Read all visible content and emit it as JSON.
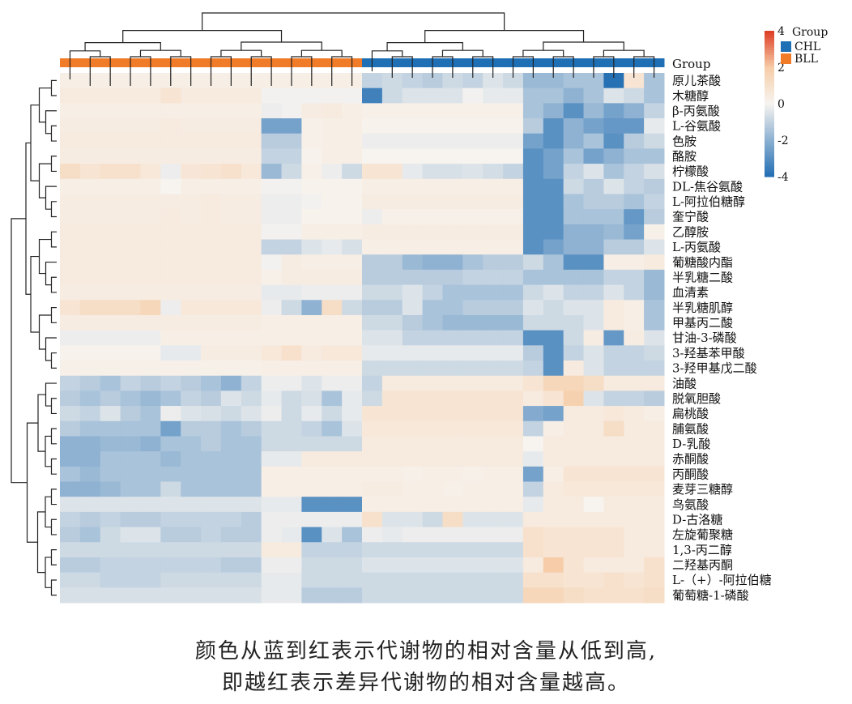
{
  "chart_data": {
    "type": "heatmap",
    "group_label": "Group",
    "legend": {
      "title": "Group",
      "groups": [
        {
          "name": "CHL",
          "color": "#1f6fb4"
        },
        {
          "name": "BLL",
          "color": "#f07b28"
        }
      ]
    },
    "colorbar": {
      "min": -4,
      "max": 4,
      "ticks": [
        4,
        2,
        0,
        -2,
        -4
      ]
    },
    "column_groups": [
      "BLL",
      "BLL",
      "BLL",
      "BLL",
      "BLL",
      "BLL",
      "BLL",
      "BLL",
      "BLL",
      "BLL",
      "BLL",
      "BLL",
      "BLL",
      "BLL",
      "BLL",
      "CHL",
      "CHL",
      "CHL",
      "CHL",
      "CHL",
      "CHL",
      "CHL",
      "CHL",
      "CHL",
      "CHL",
      "CHL",
      "CHL",
      "CHL",
      "CHL",
      "CHL"
    ],
    "rows": [
      {
        "label": "原儿茶酸",
        "values": [
          0.3,
          0.3,
          0.3,
          0.3,
          0.3,
          0.3,
          0.3,
          0.3,
          0.3,
          0.3,
          0.3,
          0.3,
          0.3,
          0.3,
          0.3,
          -1.0,
          -0.8,
          -1.0,
          -1.2,
          -0.8,
          -1.0,
          -0.5,
          -0.8,
          -1.8,
          -1.8,
          -1.5,
          -1.5,
          -4.0,
          0.8,
          -1.5
        ]
      },
      {
        "label": "木糖醇",
        "values": [
          0.5,
          0.5,
          0.5,
          0.5,
          0.5,
          0.8,
          0.5,
          0.5,
          0.5,
          0.5,
          -0.1,
          -0.1,
          -0.1,
          -0.1,
          -0.1,
          -3.5,
          -0.8,
          -0.5,
          -0.5,
          -0.5,
          -0.1,
          -0.3,
          -0.3,
          -1.5,
          -1.5,
          -2.0,
          -1.5,
          -0.5,
          -0.8,
          -1.5
        ]
      },
      {
        "label": "β-丙氨酸",
        "values": [
          0.3,
          0.3,
          0.3,
          0.3,
          0.3,
          0.3,
          0.3,
          0.3,
          0.3,
          0.3,
          -0.2,
          -0.1,
          0.4,
          0.5,
          0.3,
          0.2,
          0.2,
          0.2,
          0.2,
          0.2,
          0.2,
          0.2,
          0.2,
          -1.5,
          -2.0,
          -3.0,
          -1.8,
          -2.5,
          -2.0,
          -1.0
        ]
      },
      {
        "label": "L-谷氨酸",
        "values": [
          0.4,
          0.4,
          0.4,
          0.4,
          0.4,
          0.5,
          0.4,
          0.4,
          0.4,
          0.4,
          -2.5,
          -2.5,
          0.2,
          0.3,
          0.3,
          0.1,
          0.1,
          0.1,
          0.1,
          0.1,
          0.1,
          0.1,
          0.1,
          -1.2,
          -3.0,
          -2.0,
          -2.5,
          -2.8,
          -2.8,
          -0.3
        ]
      },
      {
        "label": "色胺",
        "values": [
          0.5,
          0.5,
          0.5,
          0.5,
          0.5,
          0.5,
          0.5,
          0.5,
          0.5,
          0.5,
          -1.2,
          -1.2,
          0.2,
          0.3,
          0.3,
          -0.2,
          -0.2,
          -0.2,
          -0.2,
          -0.2,
          -0.2,
          -0.2,
          -0.2,
          -2.5,
          -3.0,
          -2.0,
          -1.5,
          -3.0,
          -1.2,
          -0.8
        ]
      },
      {
        "label": "酪胺",
        "values": [
          0.4,
          0.4,
          0.4,
          0.4,
          0.4,
          0.4,
          0.4,
          0.4,
          0.4,
          0.4,
          -1.0,
          -1.0,
          0.1,
          0.3,
          0.3,
          0.0,
          0.0,
          0.0,
          0.0,
          0.0,
          0.0,
          0.0,
          0.0,
          -3.0,
          -2.5,
          -1.5,
          -2.5,
          -2.0,
          -1.5,
          -1.5
        ]
      },
      {
        "label": "柠檬酸",
        "values": [
          1.2,
          0.8,
          1.0,
          1.0,
          0.6,
          -0.2,
          0.7,
          0.8,
          1.0,
          0.6,
          -1.8,
          -0.8,
          0.2,
          -0.2,
          -0.8,
          0.8,
          0.8,
          -0.3,
          -0.6,
          -0.6,
          -0.5,
          -0.7,
          -1.0,
          -3.0,
          -2.5,
          -1.0,
          -0.5,
          -1.5,
          -1.0,
          -0.6
        ]
      },
      {
        "label": "DL-焦谷氨酸",
        "values": [
          0.3,
          0.3,
          0.3,
          0.3,
          0.3,
          0.0,
          0.3,
          0.3,
          0.3,
          0.3,
          -0.1,
          -0.1,
          0.1,
          0.1,
          0.1,
          0.3,
          0.3,
          0.3,
          0.3,
          0.3,
          0.3,
          0.3,
          0.3,
          -3.0,
          -3.0,
          -0.8,
          -1.2,
          -0.5,
          -1.0,
          -1.2
        ]
      },
      {
        "label": "L-阿拉伯糖醇",
        "values": [
          0.4,
          0.4,
          0.4,
          0.4,
          0.4,
          0.4,
          0.4,
          0.5,
          0.4,
          0.4,
          -0.2,
          -0.2,
          -0.1,
          0.1,
          0.1,
          0.4,
          0.4,
          0.4,
          0.4,
          0.4,
          0.4,
          0.4,
          0.4,
          -3.0,
          -3.0,
          -1.5,
          -1.2,
          -1.2,
          -1.5,
          -1.0
        ]
      },
      {
        "label": "奎宁酸",
        "values": [
          0.4,
          0.4,
          0.4,
          0.4,
          0.4,
          0.5,
          0.4,
          0.5,
          0.4,
          0.4,
          -0.2,
          -0.2,
          0.1,
          0.1,
          0.1,
          -0.2,
          0.2,
          0.2,
          0.2,
          0.2,
          0.2,
          0.2,
          0.2,
          -3.0,
          -3.0,
          -1.5,
          -1.5,
          -1.5,
          -2.8,
          -1.2
        ]
      },
      {
        "label": "乙醇胺",
        "values": [
          0.5,
          0.5,
          0.5,
          0.5,
          0.5,
          0.5,
          0.5,
          0.5,
          0.5,
          0.5,
          -0.1,
          -0.1,
          0.3,
          0.3,
          0.3,
          0.4,
          0.4,
          0.4,
          0.4,
          0.4,
          0.4,
          0.4,
          0.4,
          -3.0,
          -3.0,
          -2.0,
          -2.0,
          -1.8,
          -2.5,
          0.2
        ]
      },
      {
        "label": "L-丙氨酸",
        "values": [
          0.5,
          0.5,
          0.5,
          0.5,
          0.5,
          0.5,
          0.5,
          0.5,
          0.5,
          0.5,
          -1.0,
          -1.0,
          -0.5,
          -0.3,
          -0.6,
          0.3,
          0.3,
          0.3,
          0.3,
          0.3,
          0.3,
          0.3,
          0.3,
          -3.0,
          -2.5,
          -2.0,
          -2.0,
          -1.2,
          -1.2,
          -0.5
        ]
      },
      {
        "label": "葡糖酸内酯",
        "values": [
          0.5,
          0.5,
          0.5,
          0.5,
          0.5,
          0.5,
          0.5,
          0.5,
          0.5,
          0.5,
          -0.1,
          0.4,
          0.3,
          0.3,
          0.3,
          -1.2,
          -1.2,
          -1.8,
          -2.0,
          -2.0,
          -1.5,
          -1.2,
          -1.2,
          -0.8,
          -1.5,
          -3.0,
          -3.0,
          0.3,
          0.3,
          0.5
        ]
      },
      {
        "label": "半乳糖二酸",
        "values": [
          0.5,
          0.5,
          0.5,
          0.5,
          0.5,
          0.5,
          0.5,
          0.5,
          0.5,
          0.5,
          0.2,
          0.4,
          0.4,
          0.4,
          0.4,
          -1.2,
          -1.2,
          -1.2,
          -1.2,
          -1.2,
          -1.0,
          -1.0,
          -1.0,
          -1.5,
          -1.5,
          -1.5,
          -1.5,
          -1.0,
          -1.0,
          -1.8
        ]
      },
      {
        "label": "血清素",
        "values": [
          0.4,
          0.4,
          0.4,
          0.4,
          0.4,
          0.4,
          0.4,
          0.4,
          0.4,
          0.4,
          -0.3,
          -0.3,
          -0.2,
          -0.2,
          -0.2,
          -0.8,
          -0.8,
          -0.5,
          -1.0,
          -1.5,
          -1.5,
          -1.5,
          -1.5,
          -0.8,
          -0.5,
          -1.0,
          -1.0,
          -0.5,
          -1.0,
          -1.8
        ]
      },
      {
        "label": "半乳糖肌醇",
        "values": [
          0.8,
          1.2,
          1.2,
          1.2,
          1.5,
          -0.2,
          0.6,
          0.6,
          0.6,
          0.6,
          -0.2,
          -0.8,
          -2.0,
          1.2,
          -0.8,
          -1.2,
          -1.2,
          -0.5,
          -1.5,
          -1.5,
          -1.2,
          -1.2,
          -1.2,
          -0.5,
          -0.8,
          -0.5,
          -0.5,
          0.5,
          0.3,
          -1.5
        ]
      },
      {
        "label": "甲基丙二酸",
        "values": [
          0.4,
          0.4,
          0.4,
          0.4,
          0.4,
          0.4,
          0.4,
          0.4,
          0.4,
          0.4,
          0.3,
          0.3,
          0.3,
          0.3,
          0.3,
          -0.8,
          -0.8,
          -1.2,
          -1.5,
          -1.8,
          -1.8,
          -1.8,
          -1.8,
          -0.8,
          -0.8,
          -0.8,
          -0.5,
          0.5,
          0.3,
          -1.5
        ]
      },
      {
        "label": "甘油-3-磷酸",
        "values": [
          -0.2,
          -0.2,
          -0.2,
          -0.2,
          -0.2,
          0.3,
          0.3,
          0.3,
          0.3,
          0.3,
          0.3,
          0.3,
          0.3,
          0.3,
          0.3,
          -0.5,
          -0.5,
          -1.0,
          -1.0,
          -1.0,
          -1.0,
          -1.0,
          -1.0,
          -3.0,
          -3.0,
          -0.8,
          0.4,
          -2.8,
          0.4,
          -0.5
        ]
      },
      {
        "label": "3-羟基苯甲酸",
        "values": [
          0.1,
          0.1,
          0.1,
          0.1,
          0.1,
          -0.3,
          -0.3,
          0.4,
          0.4,
          0.4,
          0.6,
          1.0,
          0.5,
          0.6,
          0.6,
          -0.3,
          -0.3,
          -0.3,
          -0.3,
          -0.3,
          -0.3,
          -0.3,
          -0.3,
          -1.2,
          -3.0,
          -1.0,
          -0.5,
          -1.0,
          -1.0,
          -0.8
        ]
      },
      {
        "label": "3-羟甲基戊二酸",
        "values": [
          0.2,
          0.2,
          0.2,
          0.2,
          0.2,
          0.2,
          0.2,
          0.2,
          0.2,
          0.2,
          0.3,
          0.3,
          0.3,
          0.3,
          0.3,
          -0.8,
          -0.8,
          -0.8,
          -0.8,
          -0.8,
          -0.8,
          -0.8,
          -0.8,
          -1.0,
          -3.0,
          0.5,
          -0.5,
          -1.0,
          -1.0,
          -1.0
        ]
      },
      {
        "label": "油酸",
        "values": [
          -1.0,
          -1.2,
          -1.5,
          -1.0,
          -1.2,
          -1.0,
          -1.2,
          -1.5,
          -2.0,
          -1.0,
          -0.2,
          -0.2,
          -0.5,
          -0.2,
          -0.2,
          -1.0,
          0.5,
          0.5,
          0.5,
          0.5,
          0.5,
          0.5,
          0.5,
          0.8,
          1.5,
          1.5,
          1.2,
          0.5,
          0.5,
          0.5
        ]
      },
      {
        "label": "脱氧胆酸",
        "values": [
          -1.2,
          -1.5,
          -1.2,
          -1.5,
          -1.8,
          -1.5,
          -1.0,
          -1.2,
          -0.5,
          -0.8,
          -0.3,
          -0.8,
          -0.6,
          -1.5,
          -0.3,
          -0.8,
          0.8,
          0.8,
          0.8,
          0.8,
          0.8,
          0.8,
          0.8,
          0.5,
          0.8,
          1.8,
          -0.5,
          -1.0,
          -1.0,
          -1.2
        ]
      },
      {
        "label": "扁桃酸",
        "values": [
          -0.8,
          -1.0,
          -0.5,
          -1.2,
          -1.5,
          -0.2,
          -0.5,
          -0.6,
          -0.8,
          -0.5,
          -0.2,
          -0.8,
          -0.3,
          -0.8,
          -0.3,
          0.8,
          0.8,
          0.8,
          0.8,
          0.8,
          0.8,
          0.8,
          0.8,
          -2.2,
          -2.5,
          0.5,
          0.5,
          0.6,
          0.5,
          0.3
        ]
      },
      {
        "label": "脯氨酸",
        "values": [
          -1.2,
          -1.5,
          -1.5,
          -1.5,
          -1.5,
          -2.5,
          -1.2,
          -1.2,
          -1.5,
          -1.2,
          -0.8,
          -0.8,
          -1.0,
          -1.5,
          -0.5,
          0.6,
          0.6,
          0.6,
          0.6,
          0.6,
          0.6,
          0.6,
          0.6,
          -1.0,
          0.3,
          0.5,
          0.5,
          1.2,
          0.5,
          0.5
        ]
      },
      {
        "label": "D-乳酸",
        "values": [
          -2.0,
          -2.0,
          -1.8,
          -1.8,
          -2.0,
          -1.5,
          -1.5,
          -1.2,
          -1.5,
          -1.5,
          -0.8,
          -0.8,
          -0.8,
          -0.8,
          -0.8,
          0.5,
          0.5,
          0.5,
          0.5,
          0.5,
          0.5,
          0.5,
          0.5,
          0.0,
          0.5,
          0.5,
          0.5,
          0.5,
          0.5,
          0.5
        ]
      },
      {
        "label": "赤酮酸",
        "values": [
          -2.0,
          -2.0,
          -1.5,
          -1.5,
          -1.5,
          -1.8,
          -1.5,
          -1.5,
          -1.5,
          -1.5,
          -0.3,
          -0.3,
          0.5,
          0.5,
          0.5,
          0.5,
          0.5,
          0.5,
          0.5,
          0.5,
          0.5,
          0.5,
          0.5,
          -0.3,
          0.5,
          0.5,
          0.5,
          0.5,
          0.5,
          0.5
        ]
      },
      {
        "label": "丙酮酸",
        "values": [
          -1.5,
          -1.8,
          -1.5,
          -1.5,
          -1.5,
          -1.5,
          -1.5,
          -1.5,
          -1.5,
          -1.5,
          0.3,
          0.3,
          0.3,
          0.3,
          0.3,
          0.3,
          0.3,
          0.2,
          0.3,
          0.3,
          0.2,
          0.3,
          0.3,
          -2.5,
          0.3,
          0.8,
          0.8,
          0.8,
          0.8,
          0.8
        ]
      },
      {
        "label": "麦芽三糖醇",
        "values": [
          -2.0,
          -2.0,
          -1.8,
          -1.5,
          -1.5,
          -0.8,
          -1.5,
          -1.5,
          -1.5,
          -1.5,
          0.3,
          0.3,
          0.3,
          0.3,
          0.3,
          0.4,
          0.4,
          0.3,
          0.3,
          0.2,
          0.3,
          0.3,
          0.3,
          -1.0,
          0.5,
          0.6,
          0.6,
          0.6,
          0.6,
          0.6
        ]
      },
      {
        "label": "鸟氨酸",
        "values": [
          -0.5,
          -0.5,
          -0.5,
          -0.5,
          -0.5,
          -0.5,
          -0.5,
          -0.5,
          -0.5,
          -0.5,
          -0.3,
          -0.3,
          -3.0,
          -3.0,
          -3.0,
          0.3,
          0.3,
          0.3,
          0.3,
          0.3,
          0.3,
          0.3,
          0.3,
          -0.3,
          0.5,
          0.5,
          0.0,
          0.5,
          0.5,
          0.5
        ]
      },
      {
        "label": "D-古洛糖",
        "values": [
          -1.0,
          -1.2,
          -1.0,
          -1.2,
          -1.2,
          -1.0,
          -1.0,
          -1.0,
          -1.0,
          -1.2,
          -0.2,
          -0.2,
          -0.2,
          -0.2,
          -0.2,
          1.0,
          -0.5,
          -0.5,
          -0.8,
          1.2,
          -0.5,
          -0.5,
          -0.5,
          0.5,
          0.5,
          0.5,
          0.5,
          0.5,
          0.5,
          0.5
        ]
      },
      {
        "label": "左旋葡聚糖",
        "values": [
          -1.2,
          -1.5,
          -0.8,
          -0.5,
          -0.5,
          -1.2,
          -1.2,
          -1.0,
          -1.2,
          -1.2,
          -0.2,
          -0.3,
          -3.0,
          -0.5,
          -1.5,
          -0.2,
          -0.3,
          -0.2,
          -0.2,
          -0.2,
          -0.2,
          -0.2,
          -0.2,
          1.0,
          0.8,
          0.8,
          0.8,
          0.8,
          0.5,
          0.5
        ]
      },
      {
        "label": "1,3-丙二醇",
        "values": [
          -0.8,
          -0.8,
          -0.8,
          -0.8,
          -0.8,
          -0.8,
          -0.8,
          -0.8,
          -0.8,
          -0.8,
          0.5,
          0.5,
          -1.0,
          -1.0,
          -1.0,
          -0.8,
          -0.8,
          -0.8,
          -0.8,
          -0.8,
          -0.8,
          -0.8,
          -0.8,
          1.0,
          0.8,
          0.8,
          0.8,
          0.8,
          0.5,
          0.5
        ]
      },
      {
        "label": "二羟基丙酮",
        "values": [
          -1.2,
          -1.2,
          -1.0,
          -1.0,
          -1.0,
          -1.0,
          -1.0,
          -1.0,
          -1.2,
          -1.2,
          -0.2,
          -0.2,
          -0.8,
          -0.8,
          -0.8,
          -0.5,
          -0.5,
          -0.5,
          -0.5,
          -0.5,
          -0.5,
          -0.5,
          -0.5,
          0.5,
          2.0,
          0.8,
          0.5,
          0.5,
          0.5,
          1.0
        ]
      },
      {
        "label": "L-（+）-阿拉伯糖",
        "values": [
          -0.8,
          -0.8,
          -1.0,
          -1.0,
          -1.0,
          -0.8,
          -0.8,
          -0.8,
          -0.8,
          -0.8,
          -0.3,
          -0.3,
          -0.8,
          -0.8,
          -0.8,
          -0.8,
          -0.8,
          -0.8,
          -0.8,
          -0.8,
          -0.8,
          -0.8,
          -0.8,
          1.0,
          1.0,
          0.8,
          0.8,
          1.0,
          0.8,
          1.0
        ]
      },
      {
        "label": "葡萄糖-1-磷酸",
        "values": [
          -0.6,
          -0.6,
          -0.6,
          -0.6,
          -0.6,
          -0.6,
          -0.6,
          -0.6,
          -0.6,
          -0.6,
          -0.3,
          -0.3,
          -1.2,
          -1.2,
          -1.2,
          -0.8,
          -0.8,
          -0.8,
          -0.8,
          -0.8,
          -0.8,
          -0.8,
          -0.8,
          1.5,
          1.5,
          1.2,
          1.0,
          1.0,
          1.0,
          1.2
        ]
      }
    ]
  },
  "caption": {
    "line1": "颜色从蓝到红表示代谢物的相对含量从低到高,",
    "line2": "即越红表示差异代谢物的相对含量越高。"
  }
}
